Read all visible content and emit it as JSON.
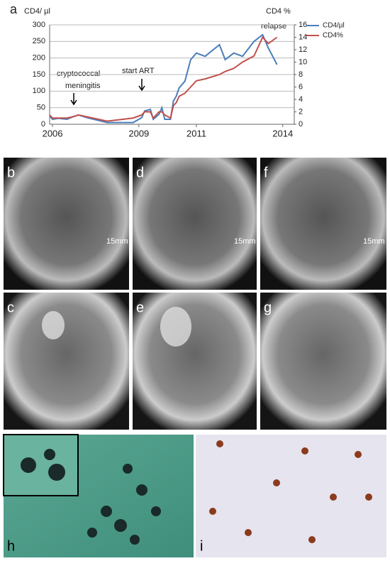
{
  "chart_data": {
    "type": "line",
    "y_label": "CD4/ µl",
    "y2_label": "CD4 %",
    "annotations": [
      "cryptococcal",
      "meningitis",
      "start ART",
      "relapse"
    ],
    "x": [
      2005.9,
      2006.0,
      2006.2,
      2006.5,
      2006.7,
      2006.9,
      2007.2,
      2007.9,
      2008.8,
      2009.1,
      2009.2,
      2009.4,
      2009.5,
      2009.7,
      2009.8,
      2009.9,
      2010.1,
      2010.2,
      2010.3,
      2010.4,
      2010.6,
      2010.8,
      2011.0,
      2011.3,
      2011.8,
      2012.0,
      2012.3,
      2012.6,
      2013.0,
      2013.3,
      2013.5,
      2013.8
    ],
    "series": [
      {
        "name": "CD4/µl",
        "color": "#4a7ebb",
        "values": [
          25,
          15,
          18,
          15,
          22,
          28,
          20,
          5,
          5,
          20,
          40,
          45,
          15,
          30,
          50,
          15,
          15,
          70,
          85,
          110,
          130,
          195,
          215,
          205,
          240,
          195,
          215,
          205,
          250,
          270,
          230,
          180
        ]
      },
      {
        "name": "CD4%",
        "color": "#c0504d",
        "axis": "y2",
        "values": [
          1.5,
          1,
          1,
          1,
          1.2,
          1.5,
          1.2,
          0.5,
          1,
          1.5,
          2,
          2,
          1,
          2,
          2,
          1.5,
          1,
          3,
          3.5,
          4.5,
          5,
          6,
          7,
          7.3,
          8,
          8.5,
          9,
          10,
          11,
          14,
          13,
          14
        ]
      }
    ],
    "xlim": [
      2005.9,
      2014.4
    ],
    "xticks": [
      2006,
      2009,
      2011,
      2014
    ],
    "ylim": [
      0,
      300
    ],
    "yticks": [
      0,
      50,
      100,
      150,
      200,
      250,
      300
    ],
    "y2lim": [
      0,
      16
    ],
    "y2ticks": [
      0,
      2,
      4,
      6,
      8,
      10,
      12,
      14,
      16
    ],
    "grid": true
  },
  "panel_labels": [
    "a",
    "b",
    "d",
    "f",
    "c",
    "e",
    "g",
    "h",
    "i"
  ],
  "scale_labels": [
    "15mm",
    "15mm",
    "15mm"
  ]
}
